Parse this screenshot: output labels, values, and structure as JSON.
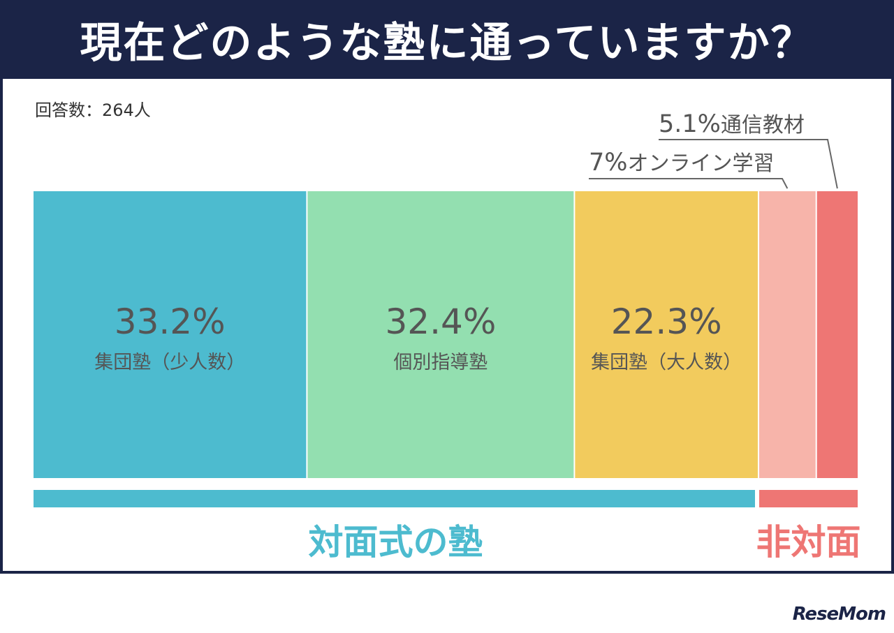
{
  "header": {
    "title": "現在どのような塾に通っていますか？"
  },
  "respondents": "回答数：264人",
  "logo": "ReseMom",
  "chart_data": {
    "type": "bar",
    "stacked": "100%",
    "categories": [
      "集団塾（少人数）",
      "個別指導塾",
      "集団塾（大人数）",
      "オンライン学習",
      "通信教材"
    ],
    "values": [
      33.2,
      32.4,
      22.3,
      7,
      5.1
    ],
    "value_labels": [
      "33.2%",
      "32.4%",
      "22.3%",
      "7%",
      "5.1%"
    ],
    "colors": [
      "#4dbbcf",
      "#93dfb0",
      "#f2cb5d",
      "#f7b4aa",
      "#ee7674"
    ],
    "groups": [
      {
        "label": "対面式の塾",
        "members": [
          0,
          1,
          2
        ],
        "color": "#4dbbcf"
      },
      {
        "label": "非対面",
        "members": [
          3,
          4
        ],
        "color": "#ee7674"
      }
    ]
  }
}
